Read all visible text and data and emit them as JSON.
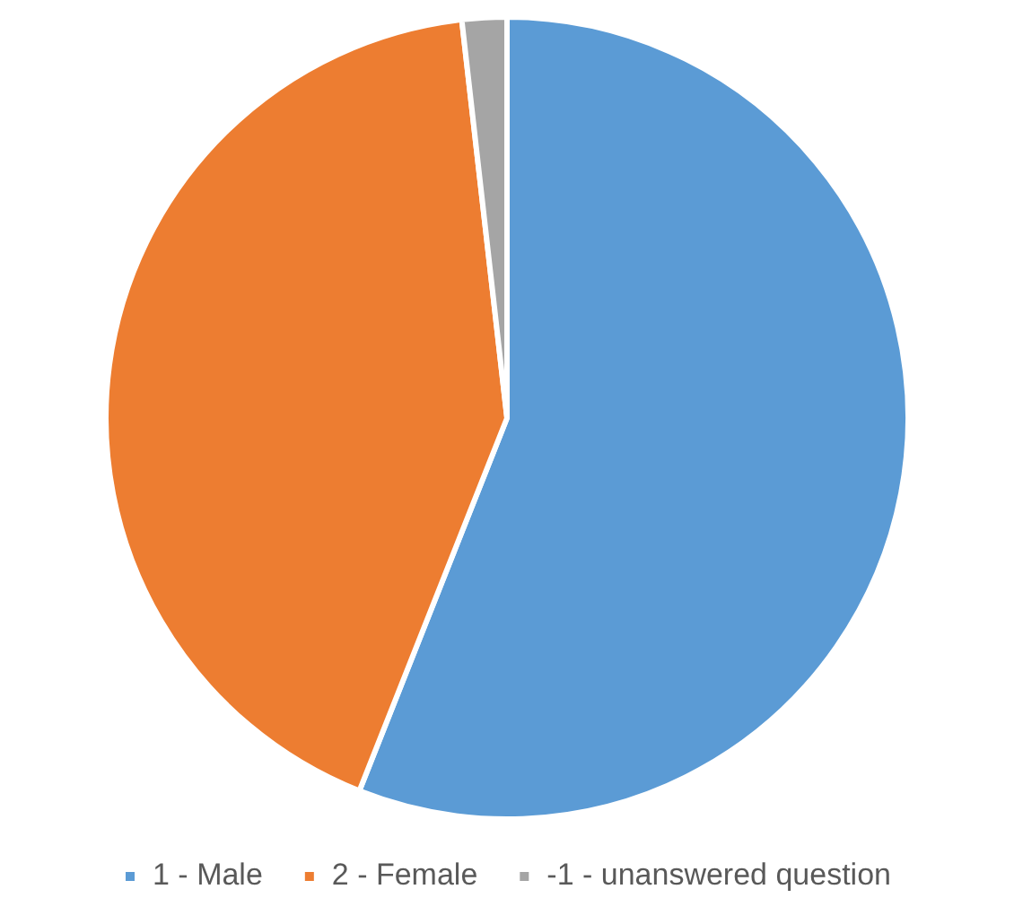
{
  "chart_data": {
    "type": "pie",
    "categories": [
      "1 - Male",
      "2 - Female",
      "-1 - unanswered question"
    ],
    "values": [
      56,
      42.2,
      1.8
    ],
    "colors": [
      "#5b9bd5",
      "#ed7d31",
      "#a5a5a5"
    ],
    "legend": "bottom"
  }
}
